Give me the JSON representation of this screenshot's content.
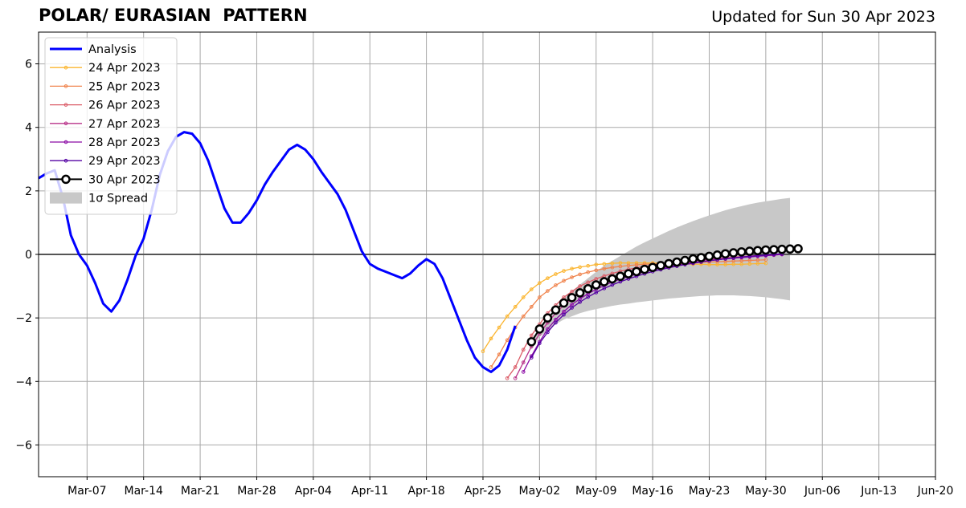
{
  "title": "POLAR/ EURASIAN  PATTERN",
  "subtitle": "Updated for Sun 30 Apr 2023",
  "chart_data": {
    "type": "line",
    "title": "POLAR/ EURASIAN  PATTERN",
    "subtitle": "Updated for Sun 30 Apr 2023",
    "xlabel": "",
    "ylabel": "",
    "xlim": [
      "2023-03-01",
      "2023-06-20"
    ],
    "ylim": [
      -7,
      7
    ],
    "grid": true,
    "legend_position": "top-left",
    "x_ticks": [
      "2023-03-07",
      "2023-03-14",
      "2023-03-21",
      "2023-03-28",
      "2023-04-04",
      "2023-04-11",
      "2023-04-18",
      "2023-04-25",
      "2023-05-02",
      "2023-05-09",
      "2023-05-16",
      "2023-05-23",
      "2023-05-30",
      "2023-06-06",
      "2023-06-13",
      "2023-06-20"
    ],
    "x_tick_labels": [
      "Mar-07",
      "Mar-14",
      "Mar-21",
      "Mar-28",
      "Apr-04",
      "Apr-11",
      "Apr-18",
      "Apr-25",
      "May-02",
      "May-09",
      "May-16",
      "May-23",
      "May-30",
      "Jun-06",
      "Jun-13",
      "Jun-20"
    ],
    "y_ticks": [
      -6,
      -4,
      -2,
      0,
      2,
      4,
      6
    ],
    "y_tick_labels": [
      "−6",
      "−4",
      "−2",
      "0",
      "2",
      "4",
      "6"
    ],
    "legend": [
      {
        "label": "Analysis",
        "color": "#0000ff",
        "kind": "line"
      },
      {
        "label": "24 Apr 2023",
        "color": "#fbb52f",
        "kind": "marker"
      },
      {
        "label": "25 Apr 2023",
        "color": "#f0834c",
        "kind": "marker"
      },
      {
        "label": "26 Apr 2023",
        "color": "#db5c68",
        "kind": "marker"
      },
      {
        "label": "27 Apr 2023",
        "color": "#b83289",
        "kind": "marker"
      },
      {
        "label": "28 Apr 2023",
        "color": "#8b0aa5",
        "kind": "marker"
      },
      {
        "label": "29 Apr 2023",
        "color": "#5402a3",
        "kind": "marker"
      },
      {
        "label": "30 Apr 2023",
        "color": "#000000",
        "kind": "big"
      },
      {
        "label": "1σ Spread",
        "color": "#c8c8c8",
        "kind": "patch"
      }
    ],
    "analysis": {
      "name": "Analysis",
      "color": "#0000ff",
      "start": "2023-03-01",
      "step_days": 1,
      "values": [
        2.4,
        2.55,
        2.65,
        1.8,
        0.6,
        0.0,
        -0.35,
        -0.9,
        -1.55,
        -1.8,
        -1.45,
        -0.8,
        -0.05,
        0.5,
        1.4,
        2.5,
        3.25,
        3.7,
        3.85,
        3.8,
        3.5,
        2.95,
        2.2,
        1.45,
        1.0,
        1.0,
        1.3,
        1.7,
        2.2,
        2.6,
        2.95,
        3.3,
        3.45,
        3.3,
        3.0,
        2.6,
        2.25,
        1.9,
        1.4,
        0.75,
        0.1,
        -0.3,
        -0.45,
        -0.55,
        -0.65,
        -0.75,
        -0.6,
        -0.35,
        -0.15,
        -0.3,
        -0.75,
        -1.4,
        -2.05,
        -2.7,
        -3.25,
        -3.55,
        -3.7,
        -3.5,
        -3.0,
        -2.25
      ]
    },
    "spread": {
      "name": "1σ Spread",
      "color": "#c8c8c8",
      "start": "2023-05-01",
      "step_days": 1,
      "upper": [
        -2.7,
        -2.3,
        -2.0,
        -1.7,
        -1.4,
        -1.15,
        -0.95,
        -0.75,
        -0.55,
        -0.35,
        -0.2,
        -0.05,
        0.1,
        0.25,
        0.38,
        0.5,
        0.62,
        0.74,
        0.85,
        0.95,
        1.05,
        1.14,
        1.23,
        1.31,
        1.39,
        1.46,
        1.52,
        1.58,
        1.63,
        1.67,
        1.71,
        1.75,
        1.78
      ],
      "lower": [
        -3.0,
        -2.6,
        -2.4,
        -2.2,
        -2.05,
        -1.95,
        -1.85,
        -1.78,
        -1.72,
        -1.67,
        -1.62,
        -1.58,
        -1.55,
        -1.51,
        -1.48,
        -1.45,
        -1.42,
        -1.39,
        -1.37,
        -1.35,
        -1.33,
        -1.31,
        -1.3,
        -1.29,
        -1.29,
        -1.29,
        -1.3,
        -1.31,
        -1.33,
        -1.35,
        -1.38,
        -1.41,
        -1.45
      ]
    },
    "series": [
      {
        "name": "24 Apr 2023",
        "color": "#fbb52f",
        "start": "2023-04-25",
        "step_days": 1,
        "values": [
          -3.05,
          -2.65,
          -2.3,
          -1.95,
          -1.65,
          -1.35,
          -1.1,
          -0.9,
          -0.75,
          -0.62,
          -0.52,
          -0.45,
          -0.4,
          -0.36,
          -0.32,
          -0.3,
          -0.28,
          -0.27,
          -0.27,
          -0.27,
          -0.27,
          -0.27,
          -0.28,
          -0.29,
          -0.3,
          -0.3,
          -0.31,
          -0.31,
          -0.32,
          -0.32,
          -0.32,
          -0.31,
          -0.31,
          -0.3,
          -0.29,
          -0.28
        ]
      },
      {
        "name": "25 Apr 2023",
        "color": "#f0834c",
        "start": "2023-04-26",
        "step_days": 1,
        "values": [
          -3.55,
          -3.15,
          -2.7,
          -2.3,
          -1.95,
          -1.65,
          -1.35,
          -1.15,
          -0.97,
          -0.83,
          -0.72,
          -0.63,
          -0.56,
          -0.5,
          -0.45,
          -0.41,
          -0.38,
          -0.35,
          -0.33,
          -0.31,
          -0.3,
          -0.29,
          -0.28,
          -0.27,
          -0.26,
          -0.26,
          -0.25,
          -0.24,
          -0.23,
          -0.22,
          -0.21,
          -0.2,
          -0.19,
          -0.18,
          -0.17
        ]
      },
      {
        "name": "26 Apr 2023",
        "color": "#db5c68",
        "start": "2023-04-28",
        "step_days": 1,
        "values": [
          -3.9,
          -3.55,
          -3.0,
          -2.55,
          -2.2,
          -1.85,
          -1.6,
          -1.35,
          -1.17,
          -1.0,
          -0.88,
          -0.77,
          -0.68,
          -0.6,
          -0.53,
          -0.47,
          -0.42,
          -0.38,
          -0.34,
          -0.3,
          -0.27,
          -0.24,
          -0.21,
          -0.19,
          -0.17,
          -0.15,
          -0.13,
          -0.11,
          -0.09,
          -0.07,
          -0.05,
          -0.04,
          -0.03,
          -0.02
        ]
      },
      {
        "name": "27 Apr 2023",
        "color": "#b83289",
        "start": "2023-04-29",
        "step_days": 1,
        "values": [
          -3.9,
          -3.4,
          -2.9,
          -2.5,
          -2.15,
          -1.85,
          -1.6,
          -1.4,
          -1.22,
          -1.07,
          -0.94,
          -0.83,
          -0.74,
          -0.66,
          -0.59,
          -0.53,
          -0.47,
          -0.42,
          -0.37,
          -0.33,
          -0.29,
          -0.25,
          -0.22,
          -0.19,
          -0.16,
          -0.14,
          -0.12,
          -0.1,
          -0.08,
          -0.06,
          -0.04,
          -0.03,
          -0.02,
          0.0
        ]
      },
      {
        "name": "28 Apr 2023",
        "color": "#8b0aa5",
        "start": "2023-04-30",
        "step_days": 1,
        "values": [
          -3.7,
          -3.2,
          -2.75,
          -2.35,
          -2.05,
          -1.8,
          -1.58,
          -1.4,
          -1.24,
          -1.1,
          -0.98,
          -0.87,
          -0.78,
          -0.7,
          -0.62,
          -0.55,
          -0.49,
          -0.44,
          -0.39,
          -0.34,
          -0.3,
          -0.26,
          -0.23,
          -0.2,
          -0.17,
          -0.14,
          -0.12,
          -0.1,
          -0.08,
          -0.06,
          -0.04,
          -0.02,
          0.0
        ]
      },
      {
        "name": "29 Apr 2023",
        "color": "#5402a3",
        "start": "2023-05-01",
        "step_days": 1,
        "values": [
          -3.25,
          -2.8,
          -2.45,
          -2.15,
          -1.9,
          -1.68,
          -1.5,
          -1.34,
          -1.2,
          -1.07,
          -0.96,
          -0.86,
          -0.77,
          -0.69,
          -0.61,
          -0.54,
          -0.48,
          -0.42,
          -0.37,
          -0.32,
          -0.28,
          -0.24,
          -0.2,
          -0.17,
          -0.14,
          -0.11,
          -0.08,
          -0.06,
          -0.04,
          -0.02,
          0.0,
          0.02
        ]
      },
      {
        "name": "30 Apr 2023",
        "color": "#000000",
        "start": "2023-05-01",
        "step_days": 1,
        "values": [
          -2.75,
          -2.35,
          -2.0,
          -1.75,
          -1.53,
          -1.36,
          -1.21,
          -1.08,
          -0.96,
          -0.86,
          -0.77,
          -0.69,
          -0.61,
          -0.54,
          -0.47,
          -0.41,
          -0.35,
          -0.29,
          -0.24,
          -0.19,
          -0.14,
          -0.1,
          -0.06,
          -0.02,
          0.02,
          0.05,
          0.08,
          0.1,
          0.12,
          0.14,
          0.15,
          0.16,
          0.17,
          0.18
        ]
      }
    ]
  }
}
